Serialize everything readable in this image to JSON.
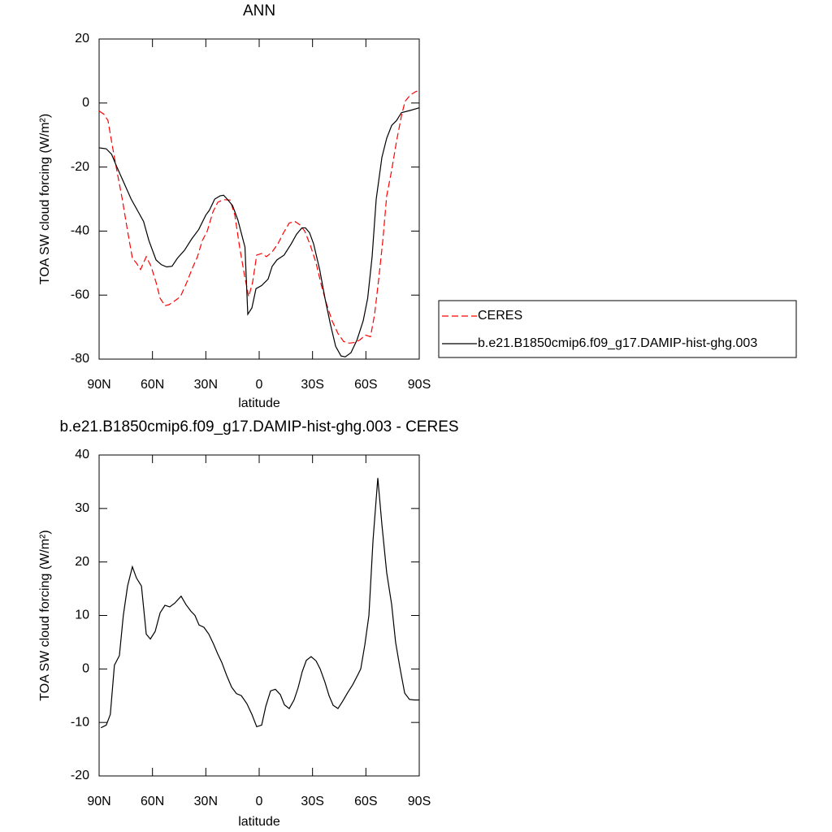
{
  "chart_data": [
    {
      "type": "line",
      "title": "ANN",
      "xlabel": "latitude",
      "ylabel": "TOA SW cloud forcing (W/m²)",
      "xlim": [
        90,
        -90
      ],
      "ylim": [
        -80,
        20
      ],
      "xticks": [
        {
          "value": 90,
          "label": "90N"
        },
        {
          "value": 60,
          "label": "60N"
        },
        {
          "value": 30,
          "label": "30N"
        },
        0,
        {
          "value": -30,
          "label": "30S"
        },
        {
          "value": -60,
          "label": "60S"
        },
        {
          "value": -90,
          "label": "90S"
        }
      ],
      "yticks": [
        -80,
        -60,
        -40,
        -20,
        0,
        20
      ],
      "legend": "right",
      "series": [
        {
          "name": "CERES",
          "color": "#ff0000",
          "line_style": "dashed",
          "x": [
            90,
            87.3,
            85,
            82.7,
            80.4,
            77,
            74,
            71.3,
            69,
            66.7,
            63.5,
            60.8,
            58,
            55.7,
            53,
            50.7,
            48,
            44.3,
            40.7,
            37.5,
            34.7,
            32,
            29.2,
            26,
            23.3,
            20.1,
            16.4,
            13.7,
            11,
            8.2,
            5.9,
            3.7,
            1.4,
            -1.4,
            -4.1,
            -7.3,
            -10.5,
            -13.7,
            -16.9,
            -20.1,
            -22.8,
            -25.6,
            -28.8,
            -32,
            -35,
            -38,
            -41,
            -44.3,
            -47.5,
            -50.7,
            -53.9,
            -56.6,
            -59.8,
            -62.6,
            -64.9,
            -67.2,
            -69.5,
            -71.7,
            -74.5,
            -77.2,
            -80,
            -82,
            -85,
            -87.8,
            -90
          ],
          "values": [
            -2.5,
            -3.5,
            -5.5,
            -13,
            -20,
            -30,
            -40,
            -48.5,
            -50,
            -52,
            -48,
            -51,
            -56,
            -61,
            -63.3,
            -63,
            -62,
            -60.5,
            -56,
            -51.5,
            -48,
            -43,
            -40,
            -34,
            -31,
            -30.2,
            -30.3,
            -35,
            -45,
            -54,
            -60.5,
            -56,
            -47.5,
            -47,
            -48,
            -46.5,
            -44,
            -40.5,
            -37.5,
            -37,
            -38,
            -40,
            -44.5,
            -50,
            -57,
            -63,
            -68,
            -72,
            -74.5,
            -75,
            -74.8,
            -74,
            -72.5,
            -73,
            -66,
            -55,
            -43,
            -29,
            -21,
            -12,
            -4,
            0.5,
            2.5,
            3.5,
            4
          ]
        },
        {
          "name": "b.e21.B1850cmip6.f09_g17.DAMIP-hist-ghg.003",
          "color": "#000000",
          "line_style": "solid",
          "x": [
            90,
            86,
            83,
            80,
            76,
            72,
            68,
            65,
            62,
            58,
            55,
            52,
            49,
            46,
            42,
            38,
            34,
            30,
            28,
            25,
            22,
            20,
            18,
            15,
            12,
            8,
            6.4,
            4.1,
            1.8,
            -1.4,
            -5,
            -7.3,
            -10,
            -14,
            -18,
            -21,
            -24,
            -26,
            -28.3,
            -30.6,
            -34,
            -37,
            -40,
            -43,
            -46,
            -48.4,
            -51.6,
            -55,
            -58.5,
            -61,
            -63.5,
            -65.8,
            -69,
            -71.7,
            -74.5,
            -77.2,
            -80,
            -85,
            -90
          ],
          "values": [
            -14,
            -14.3,
            -16,
            -20,
            -25,
            -30,
            -34,
            -37,
            -43,
            -49,
            -50.5,
            -51.2,
            -51,
            -48.5,
            -46,
            -42.5,
            -39.5,
            -35,
            -33.5,
            -30,
            -29,
            -28.8,
            -30,
            -32,
            -36.5,
            -45,
            -66,
            -64,
            -58,
            -57,
            -55,
            -51,
            -49,
            -47.5,
            -44,
            -41,
            -39,
            -39,
            -40.5,
            -44,
            -52,
            -61,
            -69,
            -76,
            -79,
            -79.3,
            -78,
            -74,
            -68,
            -61,
            -48,
            -30,
            -17,
            -11,
            -7,
            -5.5,
            -3,
            -2.3,
            -1.5
          ]
        }
      ]
    },
    {
      "type": "line",
      "title": "b.e21.B1850cmip6.f09_g17.DAMIP-hist-ghg.003 - CERES",
      "xlabel": "latitude",
      "ylabel": "TOA SW cloud forcing (W/m²)",
      "xlim": [
        90,
        -90
      ],
      "ylim": [
        -20,
        40
      ],
      "xticks": [
        {
          "value": 90,
          "label": "90N"
        },
        {
          "value": 60,
          "label": "60N"
        },
        {
          "value": 30,
          "label": "30N"
        },
        0,
        {
          "value": -30,
          "label": "30S"
        },
        {
          "value": -60,
          "label": "60S"
        },
        {
          "value": -90,
          "label": "90S"
        }
      ],
      "yticks": [
        -20,
        -10,
        0,
        10,
        20,
        30,
        40
      ],
      "series": [
        {
          "color": "#000000",
          "line_style": "solid",
          "x": [
            89,
            86,
            83.7,
            81.4,
            78.6,
            76.4,
            74,
            71.3,
            69,
            66.2,
            63.5,
            61.2,
            58.5,
            55.7,
            53,
            50.3,
            47.5,
            43.9,
            41.1,
            38.4,
            36.1,
            33.8,
            31.1,
            28.3,
            25.6,
            23.3,
            21,
            18.3,
            15.5,
            12.8,
            10,
            6.9,
            4.1,
            1.4,
            -1.4,
            -3.7,
            -6.4,
            -9.1,
            -11.9,
            -14.2,
            -16.9,
            -19.6,
            -21.9,
            -24.2,
            -26.5,
            -29.2,
            -32,
            -34.3,
            -37,
            -39.3,
            -41.6,
            -44.3,
            -47,
            -49.8,
            -52.5,
            -55.3,
            -57.1,
            -59.4,
            -61.7,
            -64,
            -66.7,
            -69,
            -71.7,
            -74.5,
            -76.7,
            -79,
            -81.8,
            -84.5,
            -87.3,
            -90
          ],
          "values": [
            -11,
            -10.5,
            -8.5,
            0.7,
            2.5,
            10,
            15.5,
            19.1,
            17,
            15.5,
            6.5,
            5.6,
            7,
            10.5,
            11.9,
            11.6,
            12.3,
            13.6,
            12,
            10.8,
            10,
            8.2,
            7.8,
            6.5,
            4.6,
            2.8,
            1.2,
            -1.2,
            -3.4,
            -4.6,
            -5,
            -6.5,
            -8.5,
            -10.8,
            -10.5,
            -7,
            -4.1,
            -3.8,
            -4.8,
            -6.7,
            -7.4,
            -5.8,
            -3.5,
            -0.5,
            1.6,
            2.3,
            1.5,
            0,
            -2.5,
            -5,
            -6.8,
            -7.4,
            -6,
            -4.4,
            -3,
            -1.2,
            0,
            4.5,
            10,
            24,
            35.7,
            27,
            18,
            12,
            5,
            0.5,
            -4.5,
            -5.7,
            -5.8,
            -5.8
          ]
        }
      ]
    }
  ]
}
